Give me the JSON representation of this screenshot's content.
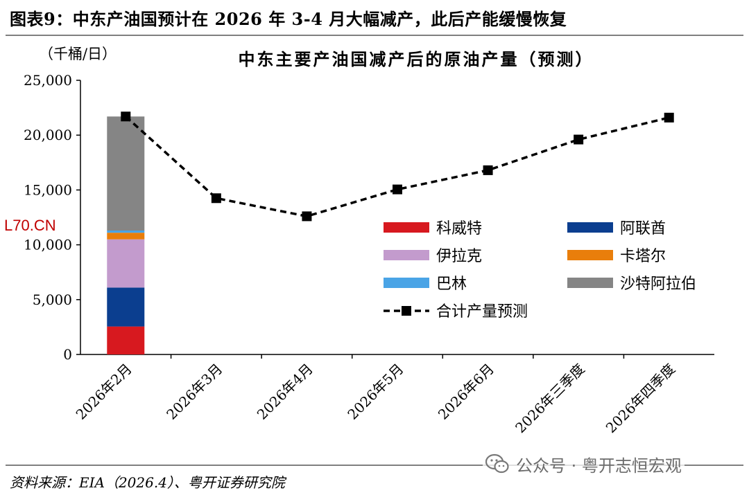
{
  "figure_title": "图表9：中东产油国预计在 2026 年 3-4 月大幅减产，此后产能缓慢恢复",
  "source": "资料来源：EIA（2026.4）、粤开证券研究院",
  "watermark": {
    "text": "公众号 · 粤开志恒宏观",
    "icon": "wechat-icon"
  },
  "overlay_label": "L70.CN",
  "colors": {
    "kuwait": "#d7191f",
    "uae": "#0b3e8f",
    "iraq": "#c39bcd",
    "qatar": "#e97e0b",
    "bahrain": "#4aa4e6",
    "saudi": "#858585",
    "line": "#000000",
    "overlay": "#c00000"
  },
  "chart_data": {
    "type": "bar+line",
    "title": "中东主要产油国减产后的原油产量（预测）",
    "ylabel": "（千桶/日）",
    "xlabel": "",
    "ylim": [
      0,
      25000
    ],
    "yticks": [
      0,
      5000,
      10000,
      15000,
      20000,
      25000
    ],
    "ytick_labels": [
      "0",
      "5,000",
      "10,000",
      "15,000",
      "20,000",
      "25,000"
    ],
    "categories": [
      "2026年2月",
      "2026年3月",
      "2026年4月",
      "2026年5月",
      "2026年6月",
      "2026年三季度",
      "2026年四季度"
    ],
    "stacked_bars": {
      "category": "2026年2月",
      "segments": [
        {
          "name": "科威特",
          "color_key": "kuwait",
          "value": 2550
        },
        {
          "name": "阿联酋",
          "color_key": "uae",
          "value": 3550
        },
        {
          "name": "伊拉克",
          "color_key": "iraq",
          "value": 4400
        },
        {
          "name": "卡塔尔",
          "color_key": "qatar",
          "value": 600
        },
        {
          "name": "巴林",
          "color_key": "bahrain",
          "value": 200
        },
        {
          "name": "沙特阿拉伯",
          "color_key": "saudi",
          "value": 10400
        }
      ]
    },
    "line_series": {
      "name": "合计产量预测",
      "style": "dashed",
      "marker": "square",
      "values": [
        21700,
        14250,
        12600,
        15050,
        16800,
        19600,
        21600
      ]
    },
    "legend": {
      "position": "center-right",
      "items": [
        "科威特",
        "阿联酋",
        "伊拉克",
        "卡塔尔",
        "巴林",
        "沙特阿拉伯",
        "合计产量预测"
      ]
    }
  }
}
